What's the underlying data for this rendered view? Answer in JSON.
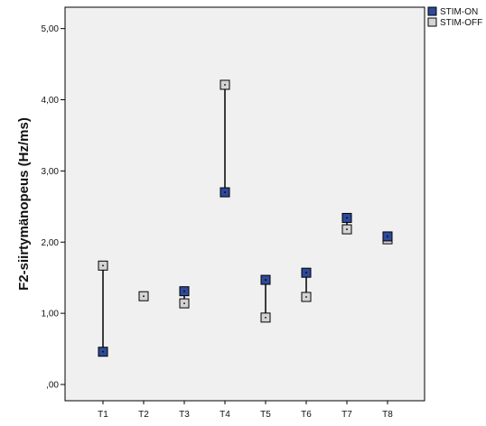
{
  "chart_data": {
    "type": "scatter",
    "title": "",
    "xlabel": "",
    "ylabel": "F2-siirtymänopeus (Hz/ms)",
    "categories": [
      "T1",
      "T2",
      "T3",
      "T4",
      "T5",
      "T6",
      "T7",
      "T8"
    ],
    "ylim": [
      0,
      5.3
    ],
    "yticks": [
      0,
      1,
      2,
      3,
      4,
      5
    ],
    "ytick_labels": [
      ",00",
      "1,00",
      "2,00",
      "3,00",
      "4,00",
      "5,00"
    ],
    "grid": false,
    "legend_position": "top-right",
    "series": [
      {
        "name": "STIM-ON",
        "color": "#2e4a9a",
        "values": [
          0.46,
          null,
          1.31,
          2.7,
          1.47,
          1.57,
          2.34,
          2.08
        ]
      },
      {
        "name": "STIM-OFF",
        "color": "#d4d4d4",
        "values": [
          1.67,
          1.24,
          1.14,
          4.21,
          0.94,
          1.23,
          2.18,
          2.04
        ]
      }
    ]
  }
}
